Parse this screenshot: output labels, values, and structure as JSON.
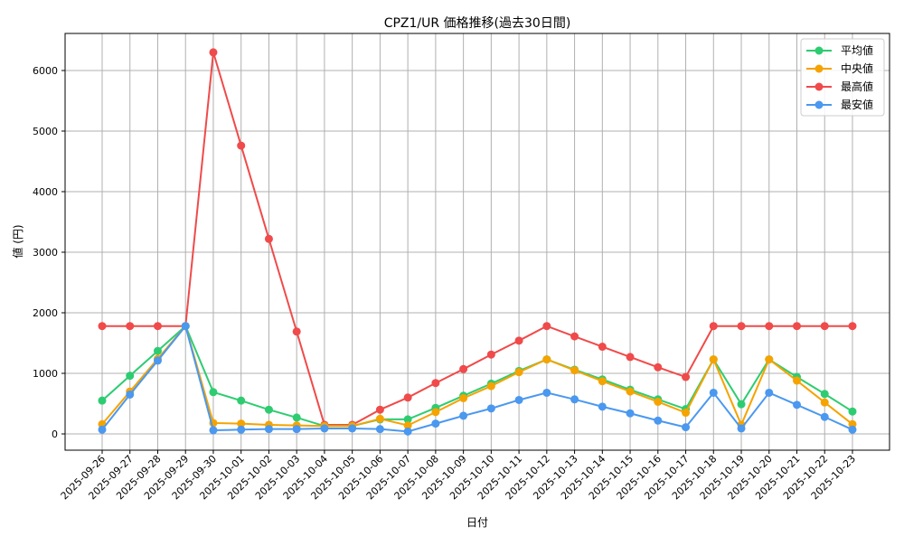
{
  "chart_data": {
    "type": "line",
    "title": "CPZ1/UR 価格推移(過去30日間)",
    "xlabel": "日付",
    "ylabel": "値 (円)",
    "ylim": [
      -250,
      6620
    ],
    "yticks": [
      0,
      1000,
      2000,
      3000,
      4000,
      5000,
      6000
    ],
    "grid": true,
    "legend_position": "upper right",
    "categories": [
      "2025-09-26",
      "2025-09-27",
      "2025-09-28",
      "2025-09-29",
      "2025-09-30",
      "2025-10-01",
      "2025-10-02",
      "2025-10-03",
      "2025-10-04",
      "2025-10-05",
      "2025-10-06",
      "2025-10-07",
      "2025-10-08",
      "2025-10-09",
      "2025-10-10",
      "2025-10-11",
      "2025-10-12",
      "2025-10-13",
      "2025-10-14",
      "2025-10-15",
      "2025-10-16",
      "2025-10-17",
      "2025-10-18",
      "2025-10-19",
      "2025-10-20",
      "2025-10-21",
      "2025-10-22",
      "2025-10-23"
    ],
    "series": [
      {
        "name": "平均値",
        "color": "#2ecc71",
        "values": [
          550,
          960,
          1370,
          1780,
          690,
          550,
          400,
          270,
          130,
          130,
          240,
          240,
          430,
          630,
          830,
          1040,
          1230,
          1060,
          900,
          730,
          570,
          410,
          1230,
          490,
          1230,
          940,
          660,
          370
        ]
      },
      {
        "name": "中央値",
        "color": "#f5a300",
        "values": [
          160,
          700,
          1240,
          1780,
          180,
          170,
          150,
          140,
          130,
          130,
          250,
          140,
          360,
          590,
          790,
          1020,
          1230,
          1050,
          870,
          700,
          530,
          350,
          1230,
          150,
          1230,
          880,
          520,
          160
        ]
      },
      {
        "name": "最高値",
        "color": "#f04a4a",
        "values": [
          1780,
          1780,
          1780,
          1780,
          6300,
          4760,
          3220,
          1690,
          150,
          150,
          400,
          600,
          840,
          1070,
          1310,
          1540,
          1780,
          1610,
          1440,
          1270,
          1100,
          940,
          1780,
          1780,
          1780,
          1780,
          1780,
          1780
        ]
      },
      {
        "name": "最安値",
        "color": "#4a98f0",
        "values": [
          70,
          650,
          1210,
          1780,
          60,
          70,
          80,
          80,
          90,
          90,
          80,
          40,
          170,
          300,
          420,
          560,
          680,
          570,
          450,
          340,
          220,
          110,
          680,
          90,
          680,
          480,
          280,
          70
        ]
      }
    ]
  }
}
